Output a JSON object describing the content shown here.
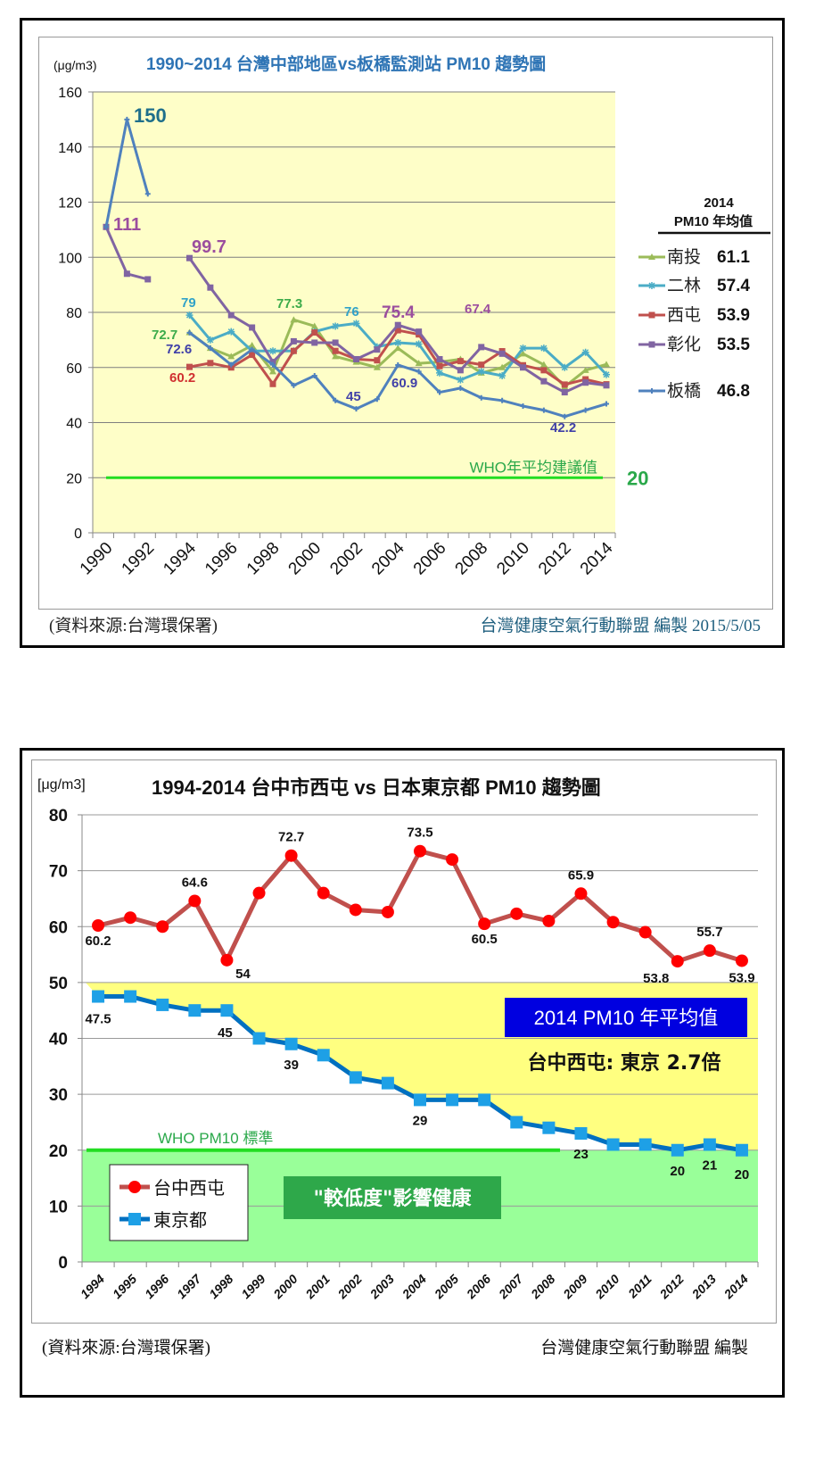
{
  "chart_data": [
    {
      "type": "line",
      "title": "1990~2014 台灣中部地區vs板橋監測站 PM10 趨勢圖",
      "ylabel": "(μg/m3)",
      "ylim": [
        0,
        160
      ],
      "yticks": [
        0,
        20,
        40,
        60,
        80,
        100,
        120,
        140,
        160
      ],
      "xlim": [
        1990,
        2014
      ],
      "xticks": [
        "1990",
        "1992",
        "1994",
        "1996",
        "1998",
        "2000",
        "2002",
        "2004",
        "2006",
        "2008",
        "2010",
        "2012",
        "2014"
      ],
      "grid": true,
      "background": "#fefec8",
      "legend_title": [
        "2014",
        "PM10 年均值"
      ],
      "legend_position": "right",
      "series": [
        {
          "name": "南投",
          "legend_value": "61.1",
          "color": "#9bbb59",
          "marker": "triangle",
          "x": [
            1994,
            1995,
            1996,
            1997,
            1998,
            1999,
            2000,
            2001,
            2002,
            2003,
            2004,
            2005,
            2006,
            2007,
            2008,
            2009,
            2010,
            2011,
            2012,
            2013,
            2014
          ],
          "values": [
            72.7,
            67,
            64,
            68,
            58.5,
            77.3,
            75,
            64,
            62,
            60,
            67,
            61.5,
            62,
            63,
            58,
            60,
            65,
            61,
            53,
            59,
            61.1
          ]
        },
        {
          "name": "二林",
          "legend_value": "57.4",
          "color": "#4bacc6",
          "marker": "star",
          "x": [
            1994,
            1995,
            1996,
            1997,
            1998,
            1999,
            2000,
            2001,
            2002,
            2003,
            2004,
            2005,
            2006,
            2007,
            2008,
            2009,
            2010,
            2011,
            2012,
            2013,
            2014
          ],
          "values": [
            79,
            70,
            73,
            66,
            66,
            66,
            73,
            75,
            76,
            67.5,
            69,
            68.5,
            58,
            55.5,
            58.5,
            57,
            67,
            67,
            60,
            65.5,
            57.4
          ]
        },
        {
          "name": "西屯",
          "legend_value": "53.9",
          "color": "#c0504d",
          "marker": "square",
          "x": [
            1994,
            1995,
            1996,
            1997,
            1998,
            1999,
            2000,
            2001,
            2002,
            2003,
            2004,
            2005,
            2006,
            2007,
            2008,
            2009,
            2010,
            2011,
            2012,
            2013,
            2014
          ],
          "values": [
            60.2,
            61.6,
            60,
            64.6,
            54,
            66,
            72.7,
            66,
            63,
            62.6,
            73.5,
            72,
            60.5,
            62.3,
            61,
            65.9,
            60.8,
            59,
            53.8,
            55.7,
            53.9
          ]
        },
        {
          "name": "彰化",
          "legend_value": "53.5",
          "color": "#8064a2",
          "marker": "square",
          "x": [
            1990,
            1991,
            1992,
            1994,
            1995,
            1996,
            1997,
            1998,
            1999,
            2000,
            2001,
            2002,
            2003,
            2004,
            2005,
            2006,
            2007,
            2008,
            2009,
            2010,
            2011,
            2012,
            2013,
            2014
          ],
          "values": [
            111,
            94,
            92,
            99.7,
            89,
            79,
            74.5,
            62,
            69.5,
            69,
            69,
            63,
            66.5,
            75.4,
            73,
            63,
            59,
            67.4,
            65,
            60,
            55,
            51,
            54.5,
            53.5
          ]
        },
        {
          "name": "板橋",
          "legend_value": "46.8",
          "color": "#4f81bd",
          "marker": "cross",
          "x": [
            1990,
            1991,
            1992,
            1994,
            1995,
            1996,
            1997,
            1998,
            1999,
            2000,
            2001,
            2002,
            2003,
            2004,
            2005,
            2006,
            2007,
            2008,
            2009,
            2010,
            2011,
            2012,
            2013,
            2014
          ],
          "values": [
            111,
            150,
            123,
            72.6,
            67,
            61,
            66.5,
            61,
            53.5,
            57,
            48,
            45,
            48.5,
            60.9,
            58.5,
            51,
            52.5,
            49,
            48,
            46,
            44.5,
            42.2,
            44.5,
            46.8
          ]
        }
      ],
      "data_labels": [
        {
          "text": "150",
          "color": "#1f6f8b"
        },
        {
          "text": "111",
          "color": "#9b4e9e"
        },
        {
          "text": "99.7",
          "color": "#9b4e9e"
        },
        {
          "text": "79",
          "color": "#31a2c8"
        },
        {
          "text": "72.7",
          "color": "#3cab4a"
        },
        {
          "text": "72.6",
          "color": "#4040a8"
        },
        {
          "text": "60.2",
          "color": "#d03030"
        },
        {
          "text": "77.3",
          "color": "#3cab4a"
        },
        {
          "text": "76",
          "color": "#31a2c8"
        },
        {
          "text": "75.4",
          "color": "#9b4e9e"
        },
        {
          "text": "45",
          "color": "#4040a8"
        },
        {
          "text": "60.9",
          "color": "#4040a8"
        },
        {
          "text": "67.4",
          "color": "#9b4e9e"
        },
        {
          "text": "42.2",
          "color": "#4040a8"
        }
      ],
      "reference_line": {
        "label": "WHO年平均建議值",
        "value": 20,
        "value_label": "20",
        "color": "#22dd22"
      },
      "source_note": "(資料來源:台灣環保署)",
      "credit": "台灣健康空氣行動聯盟 編製 2015/5/05"
    },
    {
      "type": "line",
      "title": "1994-2014 台中市西屯 vs 日本東京都 PM10 趨勢圖",
      "ylabel": "[μg/m3]",
      "ylim": [
        0,
        80
      ],
      "yticks": [
        0,
        10,
        20,
        30,
        40,
        50,
        60,
        70,
        80
      ],
      "categories": [
        "1994",
        "1995",
        "1996",
        "1997",
        "1998",
        "1999",
        "2000",
        "2001",
        "2002",
        "2003",
        "2004",
        "2005",
        "2006",
        "2007",
        "2008",
        "2009",
        "2010",
        "2011",
        "2012",
        "2013",
        "2014"
      ],
      "grid": true,
      "legend_position": "bottom-left",
      "series": [
        {
          "name": "台中西屯",
          "color": "#c0504d",
          "marker_color": "#ff0000",
          "marker": "circle",
          "values": [
            60.2,
            61.6,
            60,
            64.6,
            54,
            66,
            72.7,
            66,
            63,
            62.6,
            73.5,
            72,
            60.5,
            62.3,
            61,
            65.9,
            60.8,
            59,
            53.8,
            55.7,
            53.9
          ],
          "labels": {
            "0": "60.2",
            "3": "64.6",
            "4": "54",
            "6": "72.7",
            "10": "73.5",
            "12": "60.5",
            "15": "65.9",
            "18": "53.8",
            "19": "55.7",
            "20": "53.9"
          }
        },
        {
          "name": "東京都",
          "color": "#0070c0",
          "marker_color": "#1ea0e6",
          "marker": "square",
          "values": [
            47.5,
            47.5,
            46,
            45,
            45,
            40,
            39,
            37,
            33,
            32,
            29,
            29,
            29,
            25,
            24,
            23,
            21,
            21,
            20,
            21,
            20
          ],
          "labels": {
            "0": "47.5",
            "4": "45",
            "6": "39",
            "10": "29",
            "15": "23",
            "18": "20",
            "19": "21",
            "20": "20"
          }
        }
      ],
      "bands": [
        {
          "from": 20,
          "to": 50,
          "color": "#ffff80"
        },
        {
          "from": 0,
          "to": 20,
          "color": "#99ff99"
        }
      ],
      "reference_line": {
        "label": "WHO  PM10 標準",
        "value": 20,
        "color": "#22dd22"
      },
      "annotations": {
        "box_title": "2014 PM10 年平均值",
        "ratio_text": "台中西屯: 東京 2.7倍",
        "low_impact": "\"較低度\"影響健康"
      },
      "source_note": "(資料來源:台灣環保署)",
      "credit": "台灣健康空氣行動聯盟 編製"
    }
  ]
}
